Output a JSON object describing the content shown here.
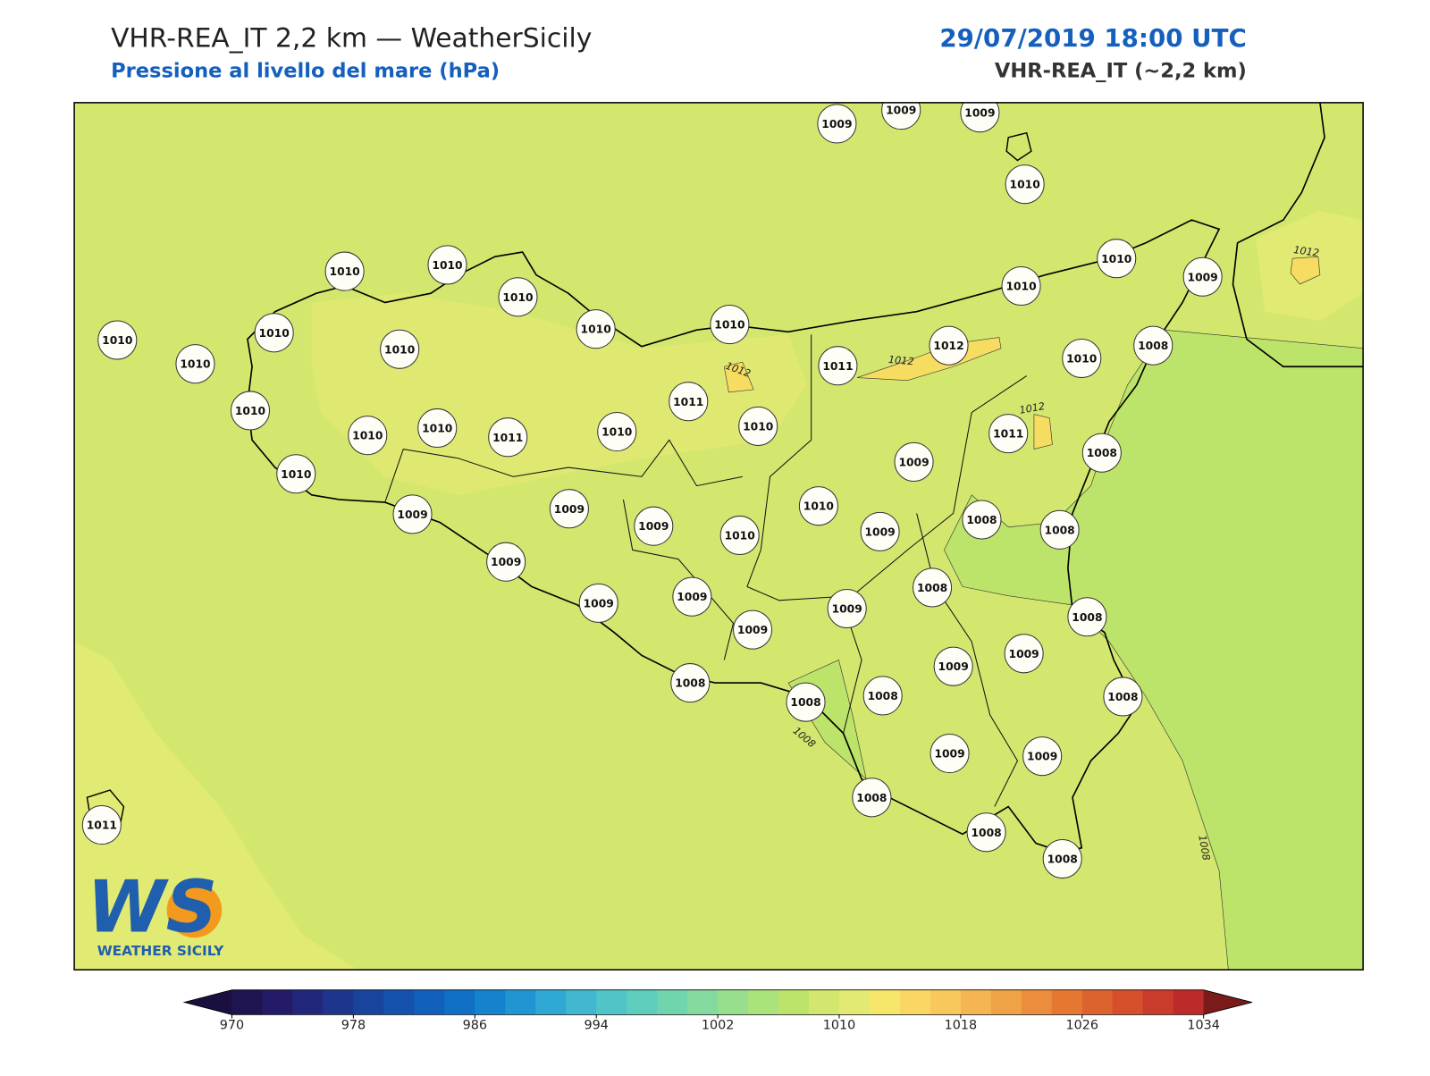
{
  "header": {
    "title": "VHR-REA_IT 2,2 km — WeatherSicily",
    "subtitle": "Pressione al livello del mare (hPa)",
    "date": "29/07/2019 18:00 UTC",
    "model": "VHR-REA_IT (~2,2 km)"
  },
  "stations": [
    1009,
    1009,
    1009,
    1010,
    1010,
    1010,
    1010,
    1010,
    1010,
    1010,
    1010,
    1009,
    1010,
    1010,
    1010,
    1010,
    1011,
    1012,
    1010,
    1008,
    1010,
    1011,
    1010,
    1010,
    1011,
    1010,
    1010,
    1011,
    1009,
    1008,
    1010,
    1009,
    1009,
    1009,
    1010,
    1010,
    1009,
    1008,
    1008,
    1009,
    1009,
    1009,
    1009,
    1009,
    1008,
    1008,
    1009,
    1009,
    1008,
    1008,
    1008,
    1008,
    1009,
    1009,
    1008,
    1008,
    1008,
    1011
  ],
  "contour_labels": [
    1012,
    1012,
    1012,
    1012,
    1008,
    1008
  ],
  "colorbar": {
    "range": [
      970,
      1034
    ],
    "ticks": [
      970,
      978,
      986,
      994,
      1002,
      1010,
      1018,
      1026,
      1034
    ],
    "colors": [
      "#1e1450",
      "#231b68",
      "#21287b",
      "#1d358c",
      "#18449d",
      "#1552ad",
      "#1160bb",
      "#0f70c6",
      "#1482cd",
      "#2095d2",
      "#30a8d4",
      "#41b8cf",
      "#50c4c6",
      "#5fcdbb",
      "#70d5ad",
      "#84da9e",
      "#98df8d",
      "#aae27c",
      "#bde46a",
      "#d3e76f",
      "#e3ea74",
      "#f6e76a",
      "#fad765",
      "#f8c85c",
      "#f4b552",
      "#f0a246",
      "#eb8d3c",
      "#e47833",
      "#dc632d",
      "#d44f2a",
      "#c93b2a",
      "#bc2a2a"
    ],
    "under_color": "#1a0f3e",
    "over_color": "#7a1a1a"
  },
  "logo": {
    "mark": "WS",
    "name": "WEATHER SICILY"
  }
}
